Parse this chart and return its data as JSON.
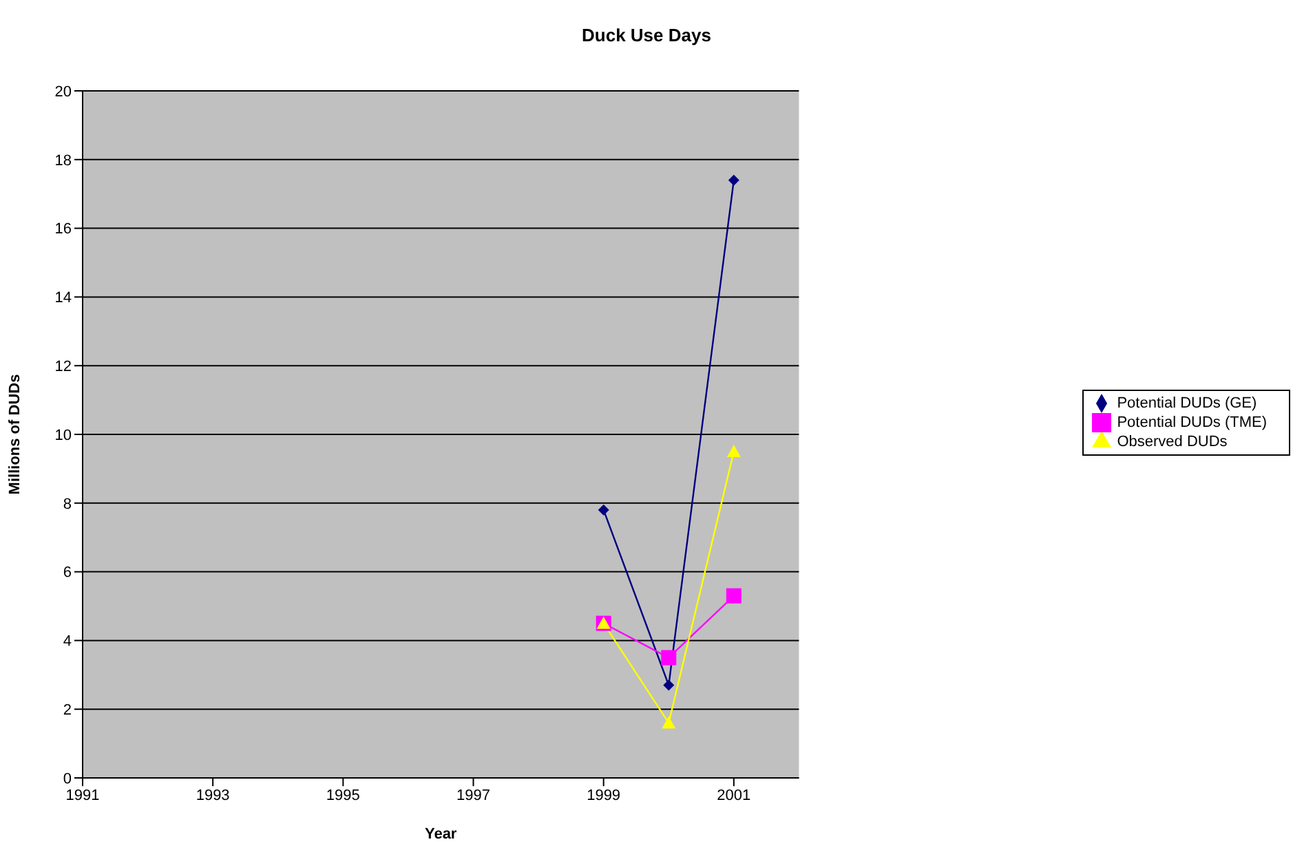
{
  "chart_data": {
    "type": "line",
    "title": "Duck Use Days",
    "xlabel": "Year",
    "ylabel": "Millions of DUDs",
    "x": [
      1999,
      2000,
      2001
    ],
    "series": [
      {
        "name": "Potential DUDs (GE)",
        "color": "#000080",
        "marker": "diamond",
        "values": [
          7.8,
          2.7,
          17.4
        ]
      },
      {
        "name": "Potential DUDs (TME)",
        "color": "#ff00ff",
        "marker": "square",
        "values": [
          4.5,
          3.5,
          5.3
        ]
      },
      {
        "name": "Observed DUDs",
        "color": "#ffff00",
        "marker": "triangle",
        "values": [
          4.5,
          1.6,
          9.5
        ]
      }
    ],
    "xlim": [
      1991,
      2002
    ],
    "xticks": [
      1991,
      1993,
      1995,
      1997,
      1999,
      2001
    ],
    "ylim": [
      0,
      20
    ],
    "yticks": [
      0,
      2,
      4,
      6,
      8,
      10,
      12,
      14,
      16,
      18,
      20
    ],
    "grid": "y",
    "legend": "right",
    "line_style": "solid"
  }
}
